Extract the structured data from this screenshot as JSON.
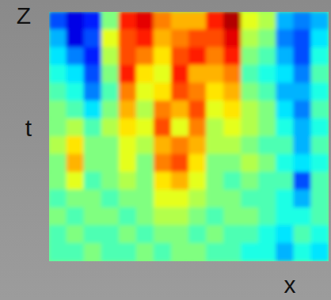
{
  "chart_data": {
    "type": "heatmap",
    "zlabel": "Z",
    "ylabel": "t",
    "xlabel": "x",
    "tick_labels": false,
    "color_range": [
      0,
      1
    ],
    "cells": [
      [
        0.2,
        0.1,
        0.15,
        0.5,
        0.85,
        0.9,
        0.75,
        0.7,
        0.7,
        0.85,
        0.95,
        0.6,
        0.55,
        0.3,
        0.25,
        0.3
      ],
      [
        0.3,
        0.1,
        0.2,
        0.6,
        0.8,
        0.85,
        0.7,
        0.75,
        0.8,
        0.8,
        0.9,
        0.55,
        0.5,
        0.25,
        0.2,
        0.35
      ],
      [
        0.35,
        0.25,
        0.15,
        0.55,
        0.8,
        0.75,
        0.65,
        0.8,
        0.85,
        0.75,
        0.85,
        0.5,
        0.45,
        0.3,
        0.2,
        0.4
      ],
      [
        0.4,
        0.35,
        0.2,
        0.5,
        0.85,
        0.65,
        0.6,
        0.85,
        0.7,
        0.7,
        0.75,
        0.45,
        0.4,
        0.35,
        0.25,
        0.45
      ],
      [
        0.45,
        0.4,
        0.25,
        0.45,
        0.75,
        0.6,
        0.65,
        0.8,
        0.75,
        0.65,
        0.7,
        0.5,
        0.45,
        0.3,
        0.3,
        0.4
      ],
      [
        0.5,
        0.45,
        0.35,
        0.5,
        0.7,
        0.55,
        0.75,
        0.7,
        0.8,
        0.6,
        0.65,
        0.55,
        0.5,
        0.35,
        0.25,
        0.45
      ],
      [
        0.5,
        0.55,
        0.45,
        0.55,
        0.65,
        0.6,
        0.8,
        0.6,
        0.75,
        0.55,
        0.6,
        0.55,
        0.5,
        0.4,
        0.3,
        0.4
      ],
      [
        0.55,
        0.65,
        0.5,
        0.5,
        0.6,
        0.55,
        0.7,
        0.75,
        0.7,
        0.55,
        0.55,
        0.5,
        0.45,
        0.45,
        0.3,
        0.45
      ],
      [
        0.5,
        0.7,
        0.5,
        0.5,
        0.6,
        0.5,
        0.75,
        0.8,
        0.65,
        0.5,
        0.5,
        0.55,
        0.5,
        0.4,
        0.35,
        0.4
      ],
      [
        0.5,
        0.6,
        0.45,
        0.5,
        0.55,
        0.5,
        0.65,
        0.7,
        0.6,
        0.5,
        0.45,
        0.5,
        0.45,
        0.45,
        0.2,
        0.45
      ],
      [
        0.45,
        0.5,
        0.5,
        0.45,
        0.5,
        0.5,
        0.6,
        0.6,
        0.55,
        0.5,
        0.5,
        0.45,
        0.45,
        0.4,
        0.3,
        0.45
      ],
      [
        0.5,
        0.45,
        0.5,
        0.5,
        0.45,
        0.5,
        0.55,
        0.55,
        0.5,
        0.45,
        0.5,
        0.5,
        0.45,
        0.4,
        0.4,
        0.45
      ],
      [
        0.45,
        0.5,
        0.45,
        0.45,
        0.5,
        0.45,
        0.5,
        0.5,
        0.45,
        0.5,
        0.45,
        0.45,
        0.4,
        0.35,
        0.45,
        0.4
      ],
      [
        0.45,
        0.45,
        0.5,
        0.45,
        0.45,
        0.5,
        0.45,
        0.5,
        0.5,
        0.45,
        0.45,
        0.4,
        0.4,
        0.3,
        0.4,
        0.35
      ]
    ]
  }
}
